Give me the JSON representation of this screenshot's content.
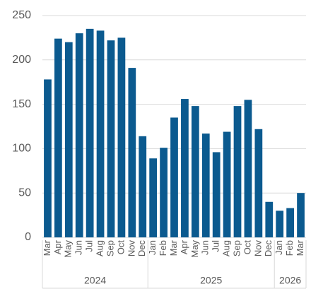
{
  "chart_data": {
    "type": "bar",
    "color": "#0b5a8f",
    "grid": true,
    "ylim": [
      0,
      250
    ],
    "yticks": [
      0,
      50,
      100,
      150,
      200,
      250
    ],
    "groups": [
      {
        "label": "2024",
        "categories": [
          "Mar",
          "Apr",
          "May",
          "Jun",
          "Jul",
          "Aug",
          "Sep",
          "Oct",
          "Nov",
          "Dec"
        ]
      },
      {
        "label": "2025",
        "categories": [
          "Jan",
          "Feb",
          "Mar",
          "Apr",
          "May",
          "Jun",
          "Jul",
          "Aug",
          "Sep",
          "Oct",
          "Nov",
          "Dec"
        ]
      },
      {
        "label": "2026",
        "categories": [
          "Jan",
          "Feb",
          "Mar"
        ]
      }
    ],
    "values": [
      178,
      224,
      220,
      230,
      235,
      233,
      222,
      225,
      191,
      114,
      89,
      101,
      135,
      156,
      148,
      117,
      96,
      119,
      148,
      155,
      122,
      40,
      30,
      33,
      50
    ]
  }
}
